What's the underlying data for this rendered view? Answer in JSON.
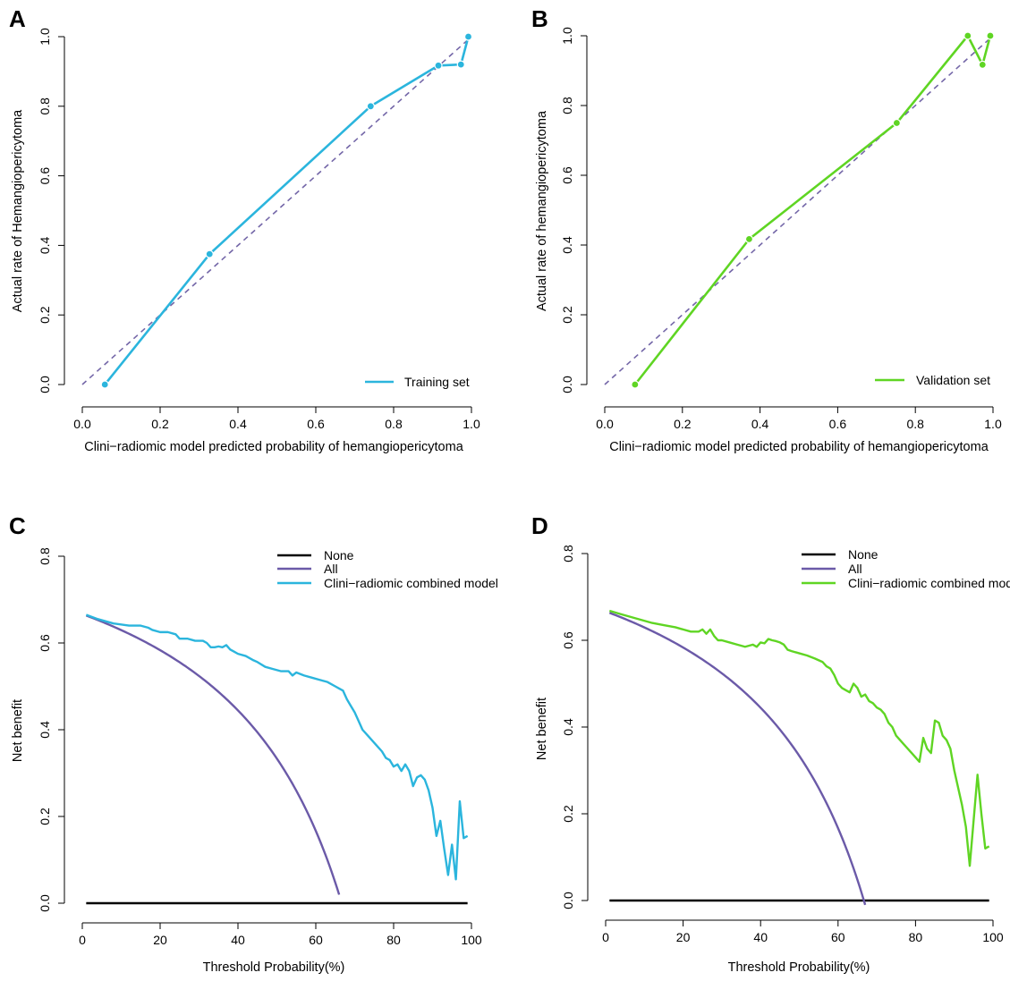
{
  "chart_data": [
    {
      "id": "A",
      "type": "line",
      "panel_label": "A",
      "xlabel": "Clini−radiomic model predicted probability of hemangiopericytoma",
      "ylabel": "Actual rate of Hemangiopericytoma",
      "xlim": [
        0.0,
        1.0
      ],
      "ylim": [
        0.0,
        1.0
      ],
      "xticks": [
        "0.0",
        "0.2",
        "0.4",
        "0.6",
        "0.8",
        "1.0"
      ],
      "yticks": [
        "0.0",
        "0.2",
        "0.4",
        "0.6",
        "0.8",
        "1.0"
      ],
      "legend_position": "bottom-right",
      "grid": false,
      "series": [
        {
          "name": "Ideal",
          "style": "dashed",
          "color": "#7467a8",
          "x": [
            0.0,
            1.0
          ],
          "y": [
            0.0,
            1.0
          ],
          "show_in_legend": false
        },
        {
          "name": "Training set",
          "style": "solid",
          "color": "#2bb5dd",
          "markers": true,
          "x": [
            0.058,
            0.327,
            0.741,
            0.915,
            0.973,
            0.992
          ],
          "y": [
            0.0,
            0.375,
            0.8,
            0.917,
            0.92,
            1.0
          ],
          "show_in_legend": true
        }
      ]
    },
    {
      "id": "B",
      "type": "line",
      "panel_label": "B",
      "xlabel": "Clini−radiomic model predicted probability of hemangiopericytoma",
      "ylabel": "Actual rate of hemangiopericytoma",
      "xlim": [
        0.0,
        1.0
      ],
      "ylim": [
        0.0,
        1.0
      ],
      "xticks": [
        "0.0",
        "0.2",
        "0.4",
        "0.6",
        "0.8",
        "1.0"
      ],
      "yticks": [
        "0.0",
        "0.2",
        "0.4",
        "0.6",
        "0.8",
        "1.0"
      ],
      "legend_position": "bottom-right",
      "grid": false,
      "series": [
        {
          "name": "Ideal",
          "style": "dashed",
          "color": "#7467a8",
          "x": [
            0.0,
            1.0
          ],
          "y": [
            0.0,
            1.0
          ],
          "show_in_legend": false
        },
        {
          "name": "Validation set",
          "style": "solid",
          "color": "#5fd523",
          "markers": true,
          "x": [
            0.078,
            0.372,
            0.752,
            0.935,
            0.973,
            0.993
          ],
          "y": [
            0.0,
            0.417,
            0.75,
            1.0,
            0.917,
            1.0
          ],
          "show_in_legend": true
        }
      ]
    },
    {
      "id": "C",
      "type": "line",
      "panel_label": "C",
      "xlabel": "Threshold Probability(%)",
      "ylabel": "Net benefit",
      "xlim": [
        0,
        100
      ],
      "ylim": [
        0.0,
        0.8
      ],
      "xticks": [
        "0",
        "20",
        "40",
        "60",
        "80",
        "100"
      ],
      "yticks": [
        "0.0",
        "0.2",
        "0.4",
        "0.6",
        "0.8"
      ],
      "legend_position": "top-right",
      "grid": false,
      "series": [
        {
          "name": "None",
          "color": "#000000",
          "x": [
            1,
            99
          ],
          "y": [
            0.0,
            0.0
          ]
        },
        {
          "name": "All",
          "color": "#6b5aa8",
          "formula": "prevalence - (1-prevalence)*p/(1-p)",
          "prevalence": 0.6667,
          "x_range": [
            1,
            66
          ]
        },
        {
          "name": "Clini−radiomic combined model",
          "color": "#2bb5dd",
          "x": [
            1,
            4,
            8,
            12,
            15,
            17,
            18,
            20,
            22,
            24,
            25,
            27,
            29,
            31,
            32,
            33,
            34,
            35,
            36,
            37,
            38,
            39,
            40,
            42,
            44,
            45,
            47,
            49,
            51,
            53,
            54,
            55,
            57,
            59,
            61,
            63,
            65,
            66,
            67,
            68,
            69,
            70,
            71,
            72,
            73,
            74,
            75,
            76,
            77,
            78,
            79,
            80,
            81,
            82,
            83,
            84,
            85,
            86,
            87,
            88,
            89,
            90,
            91,
            92,
            93,
            94,
            95,
            96,
            97,
            98,
            99
          ],
          "y": [
            0.665,
            0.655,
            0.645,
            0.64,
            0.64,
            0.635,
            0.63,
            0.625,
            0.625,
            0.62,
            0.61,
            0.61,
            0.605,
            0.605,
            0.6,
            0.59,
            0.59,
            0.592,
            0.59,
            0.595,
            0.585,
            0.58,
            0.575,
            0.57,
            0.56,
            0.556,
            0.545,
            0.54,
            0.535,
            0.535,
            0.525,
            0.532,
            0.525,
            0.52,
            0.515,
            0.51,
            0.5,
            0.495,
            0.49,
            0.47,
            0.455,
            0.44,
            0.42,
            0.4,
            0.39,
            0.38,
            0.37,
            0.36,
            0.35,
            0.335,
            0.33,
            0.315,
            0.32,
            0.305,
            0.32,
            0.305,
            0.27,
            0.29,
            0.295,
            0.285,
            0.26,
            0.22,
            0.155,
            0.19,
            0.125,
            0.065,
            0.135,
            0.055,
            0.235,
            0.15,
            0.155
          ]
        }
      ]
    },
    {
      "id": "D",
      "type": "line",
      "panel_label": "D",
      "xlabel": "Threshold Probability(%)",
      "ylabel": "Net benefit",
      "xlim": [
        0,
        100
      ],
      "ylim": [
        0.0,
        0.8
      ],
      "xticks": [
        "0",
        "20",
        "40",
        "60",
        "80",
        "100"
      ],
      "yticks": [
        "0.0",
        "0.2",
        "0.4",
        "0.6",
        "0.8"
      ],
      "legend_position": "top-right",
      "grid": false,
      "series": [
        {
          "name": "None",
          "color": "#000000",
          "x": [
            1,
            99
          ],
          "y": [
            0.0,
            0.0
          ]
        },
        {
          "name": "All",
          "color": "#6b5aa8",
          "formula": "prevalence - (1-prevalence)*p/(1-p)",
          "prevalence": 0.6667,
          "x_range": [
            1,
            67
          ]
        },
        {
          "name": "Clini−radiomic combined model",
          "color": "#5fd523",
          "x": [
            1,
            4,
            8,
            12,
            15,
            18,
            20,
            22,
            24,
            25,
            26,
            27,
            28,
            29,
            30,
            32,
            34,
            36,
            38,
            39,
            40,
            41,
            42,
            43,
            44,
            45,
            46,
            47,
            48,
            50,
            52,
            54,
            56,
            57,
            58,
            59,
            60,
            61,
            62,
            63,
            64,
            65,
            66,
            67,
            68,
            69,
            70,
            71,
            72,
            73,
            74,
            75,
            76,
            77,
            78,
            79,
            80,
            81,
            82,
            83,
            84,
            85,
            86,
            87,
            88,
            89,
            90,
            91,
            92,
            93,
            94,
            95,
            96,
            97,
            98,
            99
          ],
          "y": [
            0.668,
            0.66,
            0.65,
            0.64,
            0.635,
            0.63,
            0.625,
            0.62,
            0.62,
            0.625,
            0.615,
            0.625,
            0.61,
            0.6,
            0.6,
            0.595,
            0.59,
            0.585,
            0.59,
            0.585,
            0.595,
            0.593,
            0.603,
            0.6,
            0.598,
            0.595,
            0.59,
            0.578,
            0.575,
            0.57,
            0.565,
            0.558,
            0.55,
            0.54,
            0.535,
            0.52,
            0.5,
            0.49,
            0.485,
            0.48,
            0.5,
            0.49,
            0.47,
            0.475,
            0.46,
            0.455,
            0.445,
            0.44,
            0.43,
            0.41,
            0.4,
            0.38,
            0.37,
            0.36,
            0.35,
            0.34,
            0.33,
            0.32,
            0.375,
            0.35,
            0.34,
            0.415,
            0.41,
            0.38,
            0.37,
            0.35,
            0.3,
            0.26,
            0.22,
            0.17,
            0.08,
            0.185,
            0.29,
            0.2,
            0.12,
            0.125
          ]
        }
      ]
    }
  ]
}
